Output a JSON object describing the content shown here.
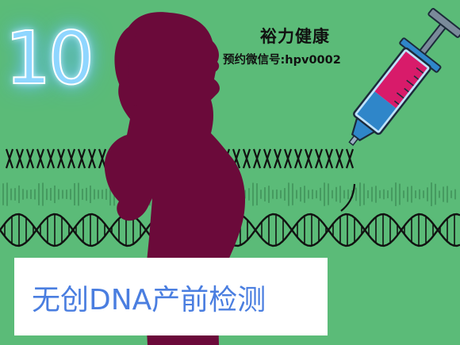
{
  "number_badge": "10",
  "brand_name": "裕力健康",
  "contact_line": "预约微信号:hpv0002",
  "title": "无创DNA产前检测",
  "colors": {
    "background": "#5bbb78",
    "silhouette": "#6b0a3a",
    "dna_strands": "#111111",
    "syringe_fluid": "#d81b6a",
    "syringe_body": "#2f86c9",
    "title_text": "#4a7ee0",
    "number_glow": "#8fd6ff"
  },
  "icons": [
    "pregnant-woman-silhouette",
    "syringe-icon",
    "dna-helix-icon",
    "chromosome-row-icon"
  ]
}
